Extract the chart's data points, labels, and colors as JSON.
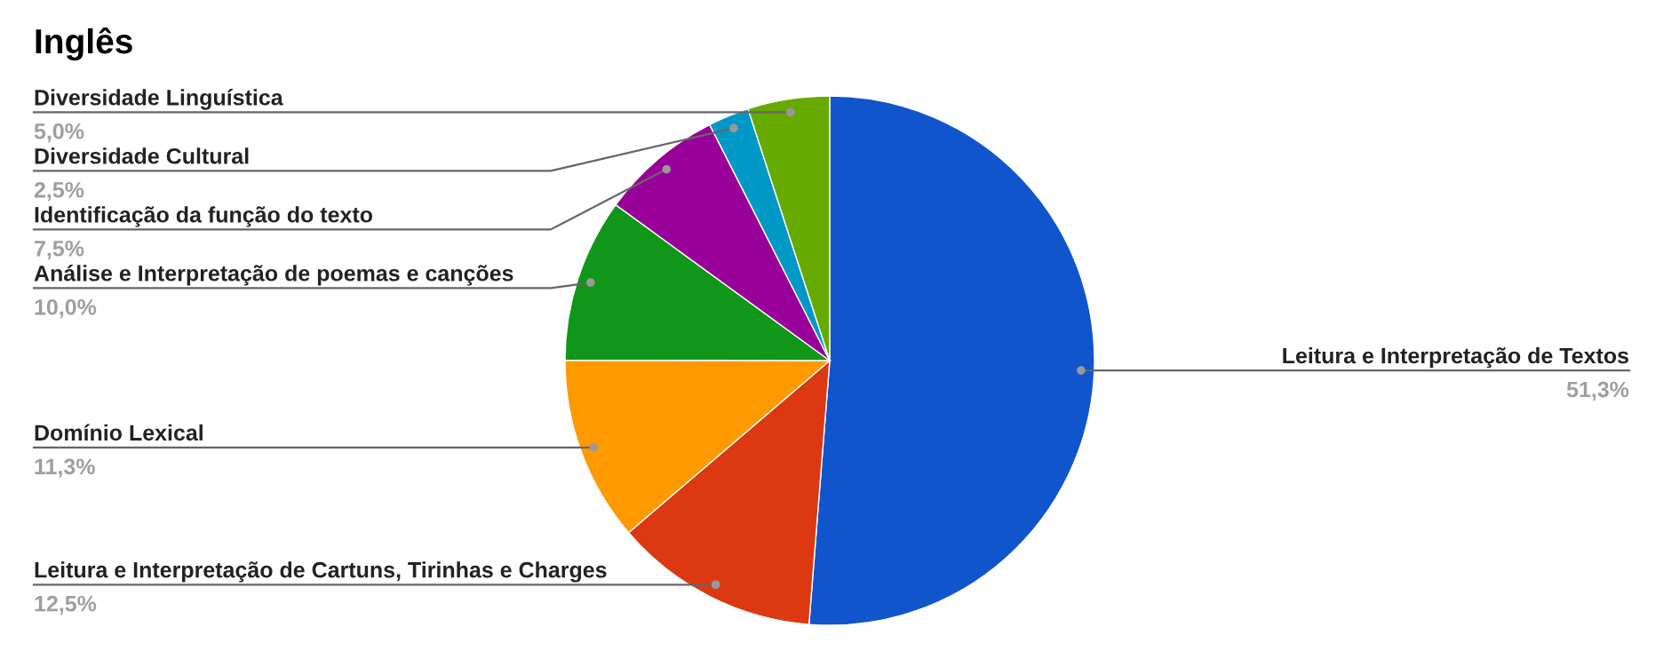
{
  "chart_data": {
    "type": "pie",
    "title": "Inglês",
    "categories": [
      "Leitura e Interpretação de Textos",
      "Leitura e Interpretação de Cartuns, Tirinhas e Charges",
      "Domínio Lexical",
      "Análise e Interpretação de poemas e canções",
      "Identificação da função do texto",
      "Diversidade Cultural",
      "Diversidade Linguística"
    ],
    "values": [
      51.3,
      12.5,
      11.3,
      10.0,
      7.5,
      2.5,
      5.0
    ],
    "colors": [
      "#1155cc",
      "#dc3912",
      "#ff9900",
      "#109618",
      "#990099",
      "#0099c6",
      "#66aa00"
    ],
    "value_labels": [
      "51,3%",
      "12,5%",
      "11,3%",
      "10,0%",
      "7,5%",
      "2,5%",
      "5,0%"
    ]
  }
}
